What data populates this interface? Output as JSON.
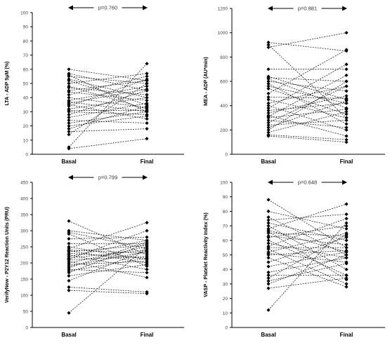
{
  "chart_data": [
    {
      "type": "line",
      "ylabel": "LTA - ADP 5µM (%)",
      "categories": [
        "Basal",
        "Final"
      ],
      "ylim": [
        0,
        100
      ],
      "yticks": [
        0,
        10,
        20,
        30,
        40,
        50,
        60,
        70,
        80,
        90,
        100
      ],
      "annotation": "p=0.760",
      "pairs": [
        [
          60,
          52
        ],
        [
          57,
          45
        ],
        [
          56,
          30
        ],
        [
          55,
          50
        ],
        [
          53,
          40
        ],
        [
          52,
          35
        ],
        [
          50,
          57
        ],
        [
          48,
          32
        ],
        [
          47,
          42
        ],
        [
          45,
          52
        ],
        [
          44,
          38
        ],
        [
          42,
          55
        ],
        [
          40,
          33
        ],
        [
          38,
          48
        ],
        [
          37,
          30
        ],
        [
          36,
          46
        ],
        [
          35,
          25
        ],
        [
          34,
          53
        ],
        [
          32,
          40
        ],
        [
          31,
          31
        ],
        [
          30,
          28
        ],
        [
          28,
          45
        ],
        [
          26,
          36
        ],
        [
          24,
          22
        ],
        [
          22,
          30
        ],
        [
          20,
          27
        ],
        [
          18,
          34
        ],
        [
          16,
          18
        ],
        [
          14,
          50
        ],
        [
          5,
          64
        ],
        [
          4,
          11
        ]
      ]
    },
    {
      "type": "line",
      "ylabel": "MEA - ADP (AU*min)",
      "categories": [
        "Basal",
        "Final"
      ],
      "ylim": [
        0,
        1200
      ],
      "yticks": [
        0,
        200,
        400,
        600,
        800,
        1000,
        1200
      ],
      "annotation": "p=0.881",
      "pairs": [
        [
          920,
          850
        ],
        [
          900,
          300
        ],
        [
          880,
          1000
        ],
        [
          700,
          700
        ],
        [
          640,
          450
        ],
        [
          630,
          600
        ],
        [
          620,
          380
        ],
        [
          600,
          520
        ],
        [
          580,
          250
        ],
        [
          560,
          420
        ],
        [
          540,
          330
        ],
        [
          500,
          860
        ],
        [
          470,
          460
        ],
        [
          450,
          300
        ],
        [
          420,
          560
        ],
        [
          400,
          200
        ],
        [
          380,
          740
        ],
        [
          360,
          420
        ],
        [
          340,
          480
        ],
        [
          320,
          150
        ],
        [
          310,
          650
        ],
        [
          300,
          370
        ],
        [
          280,
          220
        ],
        [
          260,
          560
        ],
        [
          240,
          280
        ],
        [
          220,
          440
        ],
        [
          200,
          600
        ],
        [
          180,
          350
        ],
        [
          160,
          120
        ],
        [
          150,
          100
        ]
      ]
    },
    {
      "type": "line",
      "ylabel": "VerifyNow - P2Y12 Reaction Units (PRU)",
      "categories": [
        "Basal",
        "Final"
      ],
      "ylim": [
        0,
        450
      ],
      "yticks": [
        0,
        50,
        100,
        150,
        200,
        250,
        300,
        350,
        400,
        450
      ],
      "annotation": "p=0.799",
      "pairs": [
        [
          330,
          225
        ],
        [
          300,
          270
        ],
        [
          295,
          245
        ],
        [
          290,
          190
        ],
        [
          275,
          280
        ],
        [
          260,
          260
        ],
        [
          250,
          210
        ],
        [
          245,
          325
        ],
        [
          240,
          230
        ],
        [
          238,
          200
        ],
        [
          235,
          255
        ],
        [
          230,
          215
        ],
        [
          225,
          180
        ],
        [
          220,
          270
        ],
        [
          215,
          240
        ],
        [
          212,
          300
        ],
        [
          210,
          220
        ],
        [
          205,
          155
        ],
        [
          200,
          250
        ],
        [
          195,
          205
        ],
        [
          190,
          235
        ],
        [
          185,
          265
        ],
        [
          180,
          170
        ],
        [
          175,
          215
        ],
        [
          170,
          260
        ],
        [
          160,
          195
        ],
        [
          145,
          240
        ],
        [
          125,
          110
        ],
        [
          115,
          105
        ],
        [
          45,
          250
        ]
      ]
    },
    {
      "type": "line",
      "ylabel": "VASP - Platelet Reactivity Index (%)",
      "categories": [
        "Basal",
        "Final"
      ],
      "ylim": [
        0,
        100
      ],
      "yticks": [
        0,
        10,
        20,
        30,
        40,
        50,
        60,
        70,
        80,
        90,
        100
      ],
      "annotation": "p=0.648",
      "pairs": [
        [
          88,
          55
        ],
        [
          80,
          68
        ],
        [
          76,
          50
        ],
        [
          74,
          78
        ],
        [
          72,
          60
        ],
        [
          70,
          40
        ],
        [
          68,
          85
        ],
        [
          67,
          52
        ],
        [
          66,
          33
        ],
        [
          65,
          63
        ],
        [
          63,
          57
        ],
        [
          62,
          70
        ],
        [
          60,
          36
        ],
        [
          58,
          48
        ],
        [
          56,
          75
        ],
        [
          55,
          55
        ],
        [
          54,
          30
        ],
        [
          52,
          65
        ],
        [
          51,
          45
        ],
        [
          50,
          53
        ],
        [
          48,
          28
        ],
        [
          45,
          62
        ],
        [
          42,
          52
        ],
        [
          38,
          48
        ],
        [
          36,
          36
        ],
        [
          34,
          64
        ],
        [
          32,
          44
        ],
        [
          30,
          50
        ],
        [
          27,
          34
        ],
        [
          12,
          72
        ]
      ]
    }
  ]
}
